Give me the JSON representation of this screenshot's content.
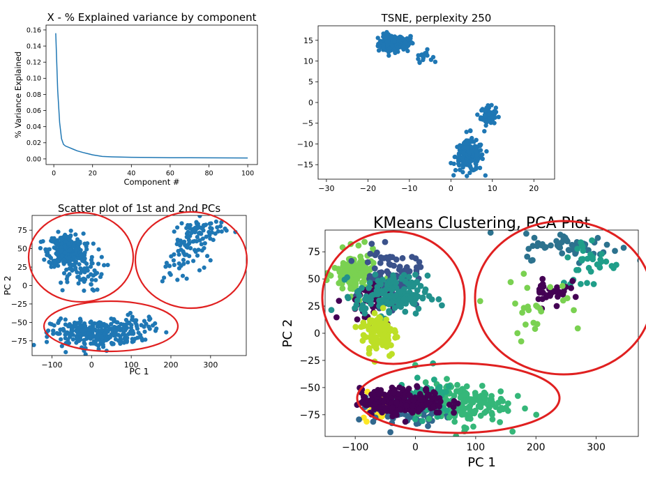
{
  "chart_data": [
    {
      "type": "line",
      "title": "X - % Explained variance by component",
      "xlabel": "Component #",
      "ylabel": "% Variance Explained",
      "xlim": [
        -4,
        105
      ],
      "ylim": [
        -0.007,
        0.166
      ],
      "xticks": [
        0,
        20,
        40,
        60,
        80,
        100
      ],
      "yticks": [
        0.0,
        0.02,
        0.04,
        0.06,
        0.08,
        0.1,
        0.12,
        0.14,
        0.16
      ],
      "ytick_labels": [
        "0.00",
        "0.02",
        "0.04",
        "0.06",
        "0.08",
        "0.10",
        "0.12",
        "0.14",
        "0.16"
      ],
      "color": "#1f77b4",
      "series": [
        {
          "x": [
            1,
            2,
            3,
            4,
            5,
            6,
            8,
            10,
            12,
            15,
            20,
            25,
            30,
            40,
            50,
            60,
            70,
            80,
            90,
            100
          ],
          "y": [
            0.156,
            0.085,
            0.045,
            0.025,
            0.018,
            0.016,
            0.014,
            0.012,
            0.01,
            0.008,
            0.005,
            0.003,
            0.0025,
            0.002,
            0.0017,
            0.0015,
            0.0014,
            0.0013,
            0.0012,
            0.0011
          ]
        }
      ]
    },
    {
      "type": "scatter",
      "title": "TSNE, perplexity 250",
      "xlabel": "",
      "ylabel": "",
      "xlim": [
        -32,
        25
      ],
      "ylim": [
        -18.5,
        18.5
      ],
      "xticks": [
        -30,
        -20,
        -10,
        0,
        10,
        20
      ],
      "yticks": [
        -15,
        -10,
        -5,
        0,
        5,
        10,
        15
      ],
      "color": "#1f77b4",
      "clusters": [
        {
          "cx": -14.5,
          "cy": 14.2,
          "sx": 1.5,
          "sy": 1.1,
          "n": 110
        },
        {
          "cx": -11.5,
          "cy": 14.5,
          "sx": 1.2,
          "sy": 1.0,
          "n": 70
        },
        {
          "cx": -6.5,
          "cy": 11.2,
          "sx": 1.0,
          "sy": 0.7,
          "n": 18
        },
        {
          "cx": 9,
          "cy": -3.2,
          "sx": 0.9,
          "sy": 1.1,
          "n": 70
        },
        {
          "cx": 4.5,
          "cy": -13,
          "sx": 1.7,
          "sy": 1.8,
          "n": 190
        },
        {
          "cx": 5,
          "cy": -6.8,
          "sx": 0.3,
          "sy": 0.3,
          "n": 2
        }
      ]
    },
    {
      "type": "scatter",
      "title": "Scatter plot of 1st and 2nd PCs",
      "xlabel": "PC 1",
      "ylabel": "PC 2",
      "xlim": [
        -150,
        390
      ],
      "ylim": [
        -95,
        95
      ],
      "xticks": [
        -100,
        0,
        100,
        200,
        300
      ],
      "yticks": [
        -75,
        -50,
        -25,
        0,
        25,
        50,
        75
      ],
      "color": "#1f77b4",
      "annotation_color": "#e02020",
      "clusters": [
        {
          "cx": -65,
          "cy": 48,
          "sx": 22,
          "sy": 11,
          "n": 260
        },
        {
          "cx": -30,
          "cy": 22,
          "sx": 30,
          "sy": 15,
          "n": 70
        },
        {
          "cx": 10,
          "cy": -65,
          "sx": 55,
          "sy": 9,
          "n": 290
        },
        {
          "cx": 110,
          "cy": -55,
          "sx": 30,
          "sy": 8,
          "n": 40
        },
        {
          "cx": 280,
          "cy": 75,
          "sx": 30,
          "sy": 8,
          "n": 60
        },
        {
          "cx": 240,
          "cy": 45,
          "sx": 22,
          "sy": 15,
          "n": 50
        },
        {
          "cx": 200,
          "cy": 20,
          "sx": 18,
          "sy": 10,
          "n": 12
        }
      ]
    },
    {
      "type": "scatter",
      "title": "KMeans Clustering, PCA Plot",
      "xlabel": "PC 1",
      "ylabel": "PC 2",
      "xlim": [
        -150,
        370
      ],
      "ylim": [
        -95,
        95
      ],
      "xticks": [
        -100,
        0,
        100,
        200,
        300
      ],
      "yticks": [
        -75,
        -50,
        -25,
        0,
        25,
        50,
        75
      ],
      "annotation_color": "#e02020",
      "clusters": [
        {
          "color": "#7ad151",
          "cx": -100,
          "cy": 55,
          "sx": 18,
          "sy": 10,
          "n": 120
        },
        {
          "color": "#3b528b",
          "cx": -40,
          "cy": 50,
          "sx": 22,
          "sy": 13,
          "n": 110
        },
        {
          "color": "#440154",
          "cx": -80,
          "cy": 30,
          "sx": 20,
          "sy": 10,
          "n": 40
        },
        {
          "color": "#21918c",
          "cx": -40,
          "cy": 35,
          "sx": 30,
          "sy": 9,
          "n": 150
        },
        {
          "color": "#bddf26",
          "cx": -60,
          "cy": 0,
          "sx": 15,
          "sy": 11,
          "n": 90
        },
        {
          "color": "#2c728e",
          "cx": 260,
          "cy": 80,
          "sx": 40,
          "sy": 6,
          "n": 55
        },
        {
          "color": "#1f9e89",
          "cx": 290,
          "cy": 65,
          "sx": 25,
          "sy": 12,
          "n": 35
        },
        {
          "color": "#440154",
          "cx": 225,
          "cy": 40,
          "sx": 15,
          "sy": 8,
          "n": 30
        },
        {
          "color": "#7ad151",
          "cx": 200,
          "cy": 25,
          "sx": 40,
          "sy": 12,
          "n": 25
        },
        {
          "color": "#fde725",
          "cx": -60,
          "cy": -67,
          "sx": 14,
          "sy": 6,
          "n": 60
        },
        {
          "color": "#31688e",
          "cx": -10,
          "cy": -70,
          "sx": 30,
          "sy": 7,
          "n": 120
        },
        {
          "color": "#35b779",
          "cx": 75,
          "cy": -65,
          "sx": 38,
          "sy": 10,
          "n": 150
        },
        {
          "color": "#22a884",
          "cx": 20,
          "cy": -60,
          "sx": 25,
          "sy": 9,
          "n": 60
        },
        {
          "color": "#440154",
          "cx": -20,
          "cy": -63,
          "sx": 35,
          "sy": 6,
          "n": 230
        }
      ]
    }
  ]
}
